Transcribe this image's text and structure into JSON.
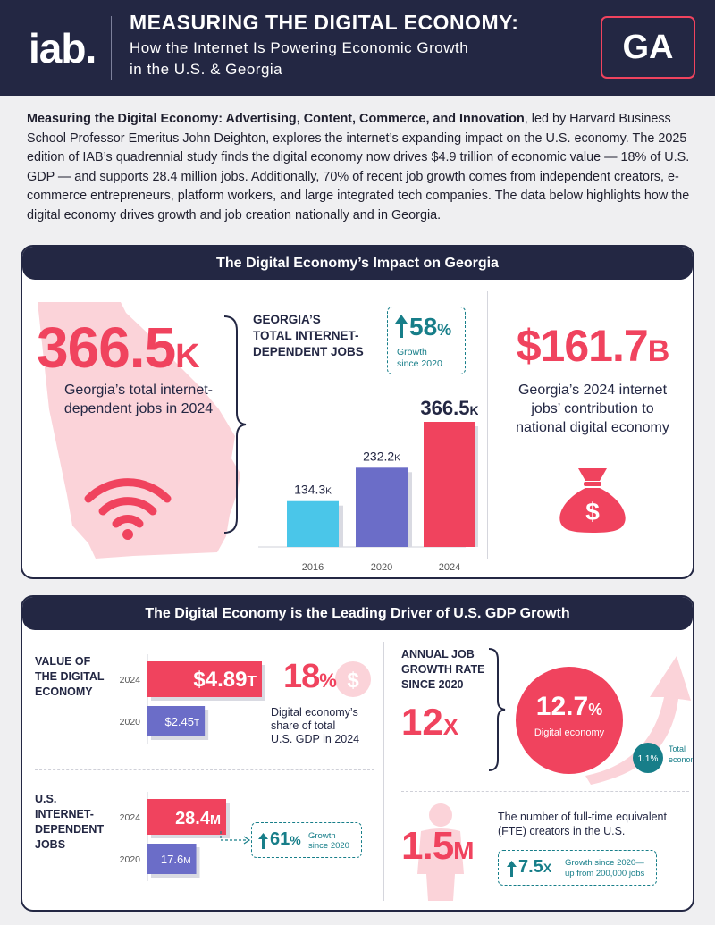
{
  "header": {
    "logo": "iab.",
    "title": "MEASURING THE DIGITAL ECONOMY:",
    "subtitle_line1": "How the Internet Is Powering Economic Growth",
    "subtitle_line2": "in the U.S. & Georgia",
    "state_badge": "GA"
  },
  "intro": {
    "bold": "Measuring the Digital Economy: Advertising, Content, Commerce, and Innovation",
    "text": ", led by Harvard Business School Professor Emeritus John Deighton, explores the internet’s expanding impact on the U.S. economy. The 2025 edition of IAB’s quadrennial study finds the digital economy now drives $4.9 trillion of economic value — 18% of U.S. GDP — and supports 28.4 million jobs. Additionally, 70% of recent job growth comes from independent creators, e-commerce entrepreneurs, platform workers, and large integrated tech companies. The data below highlights how the digital economy drives growth and job creation nationally and in Georgia."
  },
  "georgia_panel": {
    "heading": "The Digital Economy’s Impact on Georgia",
    "big_jobs": "366.5",
    "big_jobs_suffix": "K",
    "big_jobs_caption": "Georgia’s total internet-dependent jobs in 2024",
    "chart_title_line1": "GEORGIA’S",
    "chart_title_line2": "TOTAL INTERNET-",
    "chart_title_line3": "DEPENDENT JOBS",
    "growth_value": "58",
    "growth_suffix": "%",
    "growth_label_line1": "Growth",
    "growth_label_line2": "since 2020",
    "contribution": "$161.7",
    "contribution_suffix": "B",
    "contribution_caption": "Georgia’s 2024 internet jobs’ contribution to national digital economy",
    "icons": {
      "map": "georgia-map-icon",
      "wifi": "wifi-icon",
      "money": "money-bag-icon"
    }
  },
  "chart_data": {
    "type": "bar",
    "title": "GEORGIA’S TOTAL INTERNET-DEPENDENT JOBS",
    "categories": [
      "2016",
      "2020",
      "2024"
    ],
    "values": [
      134.3,
      232.2,
      366.5
    ],
    "value_labels": [
      "134.3",
      "232.2",
      "366.5"
    ],
    "value_suffix": "K",
    "unit": "thousand jobs",
    "colors": [
      "#4ac6e9",
      "#6b6dc8",
      "#f0435e"
    ]
  },
  "us_panel": {
    "heading": "The Digital Economy is the Leading Driver of U.S. GDP Growth",
    "gdp_title_line1": "VALUE OF",
    "gdp_title_line2": "THE DIGITAL",
    "gdp_title_line3": "ECONOMY",
    "gdp_bars": [
      {
        "year": "2024",
        "label": "$4.89",
        "suffix": "T",
        "value": 4.89,
        "color": "#f0435e"
      },
      {
        "year": "2020",
        "label": "$2.45",
        "suffix": "T",
        "value": 2.45,
        "color": "#6b6dc8"
      }
    ],
    "gdp_share": "18",
    "gdp_share_suffix": "%",
    "gdp_share_caption_line1": "Digital economy’s",
    "gdp_share_caption_line2": "share of total",
    "gdp_share_caption_line3": "U.S. GDP in 2024",
    "jobs_title_line1": "U.S.",
    "jobs_title_line2": "INTERNET-",
    "jobs_title_line3": "DEPENDENT",
    "jobs_title_line4": "JOBS",
    "jobs_bars": [
      {
        "year": "2024",
        "label": "28.4",
        "suffix": "M",
        "value": 28.4,
        "color": "#f0435e"
      },
      {
        "year": "2020",
        "label": "17.6",
        "suffix": "M",
        "value": 17.6,
        "color": "#6b6dc8"
      }
    ],
    "jobs_growth_value": "61",
    "jobs_growth_suffix": "%",
    "jobs_growth_label_line1": "Growth",
    "jobs_growth_label_line2": "since 2020",
    "annual_title_line1": "ANNUAL JOB",
    "annual_title_line2": "GROWTH RATE",
    "annual_title_line3": "SINCE 2020",
    "multiplier": "12",
    "multiplier_suffix": "X",
    "digital_rate": "12.7",
    "digital_rate_suffix": "%",
    "digital_rate_label": "Digital economy",
    "total_rate": "1.1%",
    "total_rate_label_line1": "Total",
    "total_rate_label_line2": "economy",
    "creators": "1.5",
    "creators_suffix": "M",
    "creators_caption": "The number of full-time equivalent (FTE) creators in the U.S.",
    "creators_growth_value": "7.5",
    "creators_growth_suffix": "X",
    "creators_growth_label_line1": "Growth since 2020—",
    "creators_growth_label_line2": "up from 200,000 jobs"
  },
  "colors": {
    "navy": "#232743",
    "pink": "#f0435e",
    "teal": "#177e89",
    "blue": "#4ac6e9",
    "purple": "#6b6dc8",
    "light_pink": "#fbd3d9"
  }
}
